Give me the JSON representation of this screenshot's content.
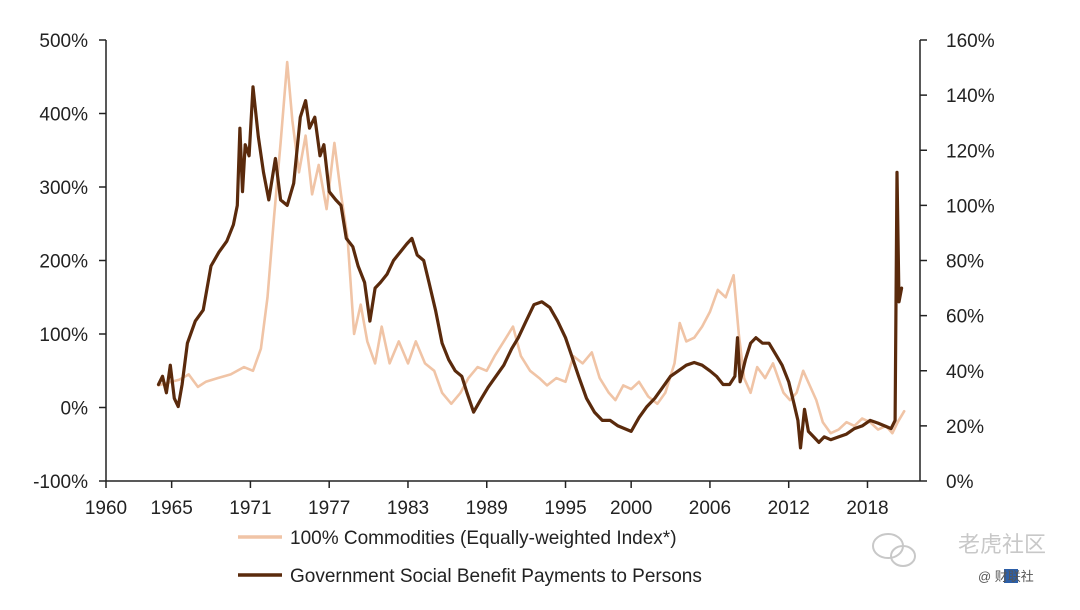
{
  "chart_data": {
    "type": "line",
    "title": "",
    "x": {
      "ticks": [
        "1960",
        "1965",
        "1971",
        "1977",
        "1983",
        "1989",
        "1995",
        "2000",
        "2006",
        "2012",
        "2018"
      ],
      "range": [
        1960,
        2022
      ]
    },
    "y_left": {
      "ticks": [
        "500%",
        "400%",
        "300%",
        "200%",
        "100%",
        "0%",
        "-100%"
      ],
      "range": [
        -100,
        500
      ],
      "unit": "%"
    },
    "y_right": {
      "ticks": [
        "160%",
        "140%",
        "120%",
        "100%",
        "80%",
        "60%",
        "40%",
        "20%",
        "0%"
      ],
      "range": [
        0,
        160
      ],
      "unit": "%"
    },
    "series": [
      {
        "name": "100% Commodities (Equally-weighted Index*)",
        "axis": "left",
        "color": "#f0c4a6",
        "points": [
          [
            1964.0,
            30
          ],
          [
            1965.0,
            35
          ],
          [
            1965.6,
            38
          ],
          [
            1966.3,
            45
          ],
          [
            1967.0,
            28
          ],
          [
            1967.6,
            35
          ],
          [
            1968.5,
            40
          ],
          [
            1969.5,
            45
          ],
          [
            1970.5,
            55
          ],
          [
            1971.2,
            50
          ],
          [
            1971.8,
            80
          ],
          [
            1972.3,
            150
          ],
          [
            1972.8,
            260
          ],
          [
            1973.3,
            360
          ],
          [
            1973.8,
            470
          ],
          [
            1974.2,
            390
          ],
          [
            1974.7,
            320
          ],
          [
            1975.2,
            370
          ],
          [
            1975.7,
            290
          ],
          [
            1976.2,
            330
          ],
          [
            1976.8,
            270
          ],
          [
            1977.4,
            360
          ],
          [
            1977.9,
            290
          ],
          [
            1978.4,
            230
          ],
          [
            1978.9,
            100
          ],
          [
            1979.4,
            140
          ],
          [
            1979.9,
            90
          ],
          [
            1980.5,
            60
          ],
          [
            1981.0,
            110
          ],
          [
            1981.6,
            60
          ],
          [
            1982.3,
            90
          ],
          [
            1983.0,
            60
          ],
          [
            1983.6,
            90
          ],
          [
            1984.3,
            60
          ],
          [
            1985.0,
            50
          ],
          [
            1985.6,
            20
          ],
          [
            1986.3,
            5
          ],
          [
            1987.0,
            20
          ],
          [
            1987.6,
            40
          ],
          [
            1988.3,
            55
          ],
          [
            1989.0,
            50
          ],
          [
            1989.6,
            70
          ],
          [
            1990.3,
            90
          ],
          [
            1991.0,
            110
          ],
          [
            1991.6,
            70
          ],
          [
            1992.3,
            50
          ],
          [
            1993.0,
            40
          ],
          [
            1993.6,
            30
          ],
          [
            1994.3,
            40
          ],
          [
            1995.0,
            35
          ],
          [
            1995.6,
            70
          ],
          [
            1996.3,
            60
          ],
          [
            1997.0,
            75
          ],
          [
            1997.6,
            40
          ],
          [
            1998.3,
            20
          ],
          [
            1998.8,
            10
          ],
          [
            1999.4,
            30
          ],
          [
            2000.0,
            25
          ],
          [
            2000.6,
            35
          ],
          [
            2001.3,
            15
          ],
          [
            2002.0,
            5
          ],
          [
            2002.6,
            20
          ],
          [
            2003.3,
            60
          ],
          [
            2003.7,
            115
          ],
          [
            2004.2,
            90
          ],
          [
            2004.8,
            95
          ],
          [
            2005.4,
            110
          ],
          [
            2006.0,
            130
          ],
          [
            2006.6,
            160
          ],
          [
            2007.2,
            150
          ],
          [
            2007.8,
            180
          ],
          [
            2008.2,
            100
          ],
          [
            2008.6,
            40
          ],
          [
            2009.1,
            20
          ],
          [
            2009.6,
            55
          ],
          [
            2010.2,
            40
          ],
          [
            2010.8,
            60
          ],
          [
            2011.2,
            40
          ],
          [
            2011.6,
            20
          ],
          [
            2012.1,
            10
          ],
          [
            2012.6,
            20
          ],
          [
            2013.1,
            50
          ],
          [
            2013.6,
            30
          ],
          [
            2014.1,
            10
          ],
          [
            2014.6,
            -20
          ],
          [
            2015.2,
            -35
          ],
          [
            2015.8,
            -30
          ],
          [
            2016.4,
            -20
          ],
          [
            2017.0,
            -25
          ],
          [
            2017.6,
            -15
          ],
          [
            2018.2,
            -20
          ],
          [
            2018.8,
            -30
          ],
          [
            2019.4,
            -25
          ],
          [
            2019.9,
            -35
          ],
          [
            2020.3,
            -20
          ],
          [
            2020.8,
            -5
          ]
        ]
      },
      {
        "name": "Government Social Benefit Payments to Persons",
        "axis": "right",
        "color": "#5a2a0c",
        "points": [
          [
            1964.0,
            35
          ],
          [
            1964.3,
            38
          ],
          [
            1964.6,
            32
          ],
          [
            1964.9,
            42
          ],
          [
            1965.2,
            30
          ],
          [
            1965.5,
            27
          ],
          [
            1965.8,
            35
          ],
          [
            1966.2,
            50
          ],
          [
            1966.8,
            58
          ],
          [
            1967.4,
            62
          ],
          [
            1968.0,
            78
          ],
          [
            1968.6,
            83
          ],
          [
            1969.2,
            87
          ],
          [
            1969.7,
            93
          ],
          [
            1970.0,
            100
          ],
          [
            1970.2,
            128
          ],
          [
            1970.4,
            105
          ],
          [
            1970.6,
            122
          ],
          [
            1970.9,
            118
          ],
          [
            1971.2,
            143
          ],
          [
            1971.6,
            125
          ],
          [
            1972.0,
            112
          ],
          [
            1972.4,
            102
          ],
          [
            1972.9,
            117
          ],
          [
            1973.3,
            102
          ],
          [
            1973.8,
            100
          ],
          [
            1974.3,
            108
          ],
          [
            1974.8,
            132
          ],
          [
            1975.2,
            138
          ],
          [
            1975.5,
            128
          ],
          [
            1975.9,
            132
          ],
          [
            1976.3,
            118
          ],
          [
            1976.6,
            122
          ],
          [
            1977.0,
            105
          ],
          [
            1977.5,
            102
          ],
          [
            1977.9,
            100
          ],
          [
            1978.3,
            88
          ],
          [
            1978.8,
            85
          ],
          [
            1979.2,
            78
          ],
          [
            1979.7,
            72
          ],
          [
            1980.1,
            58
          ],
          [
            1980.5,
            70
          ],
          [
            1980.9,
            72
          ],
          [
            1981.4,
            75
          ],
          [
            1981.9,
            80
          ],
          [
            1982.4,
            83
          ],
          [
            1982.9,
            86
          ],
          [
            1983.3,
            88
          ],
          [
            1983.7,
            82
          ],
          [
            1984.2,
            80
          ],
          [
            1984.6,
            72
          ],
          [
            1985.1,
            62
          ],
          [
            1985.6,
            50
          ],
          [
            1986.1,
            44
          ],
          [
            1986.6,
            40
          ],
          [
            1987.1,
            38
          ],
          [
            1987.5,
            32
          ],
          [
            1988.0,
            25
          ],
          [
            1988.6,
            30
          ],
          [
            1989.1,
            34
          ],
          [
            1989.7,
            38
          ],
          [
            1990.3,
            42
          ],
          [
            1990.9,
            48
          ],
          [
            1991.4,
            52
          ],
          [
            1992.0,
            58
          ],
          [
            1992.6,
            64
          ],
          [
            1993.2,
            65
          ],
          [
            1993.8,
            63
          ],
          [
            1994.4,
            58
          ],
          [
            1995.0,
            52
          ],
          [
            1995.5,
            45
          ],
          [
            1996.0,
            38
          ],
          [
            1996.6,
            30
          ],
          [
            1997.2,
            25
          ],
          [
            1997.8,
            22
          ],
          [
            1998.4,
            22
          ],
          [
            1999.0,
            20
          ],
          [
            1999.5,
            19
          ],
          [
            2000.0,
            18
          ],
          [
            2000.6,
            23
          ],
          [
            2001.2,
            27
          ],
          [
            2001.8,
            30
          ],
          [
            2002.4,
            34
          ],
          [
            2003.0,
            38
          ],
          [
            2003.6,
            40
          ],
          [
            2004.2,
            42
          ],
          [
            2004.8,
            43
          ],
          [
            2005.4,
            42
          ],
          [
            2006.0,
            40
          ],
          [
            2006.5,
            38
          ],
          [
            2007.0,
            35
          ],
          [
            2007.5,
            35
          ],
          [
            2007.9,
            38
          ],
          [
            2008.1,
            52
          ],
          [
            2008.3,
            36
          ],
          [
            2008.7,
            44
          ],
          [
            2009.1,
            50
          ],
          [
            2009.5,
            52
          ],
          [
            2010.0,
            50
          ],
          [
            2010.5,
            50
          ],
          [
            2011.0,
            46
          ],
          [
            2011.5,
            42
          ],
          [
            2012.0,
            36
          ],
          [
            2012.4,
            28
          ],
          [
            2012.7,
            22
          ],
          [
            2012.9,
            12
          ],
          [
            2013.2,
            26
          ],
          [
            2013.5,
            18
          ],
          [
            2013.9,
            16
          ],
          [
            2014.3,
            14
          ],
          [
            2014.7,
            16
          ],
          [
            2015.2,
            15
          ],
          [
            2015.8,
            16
          ],
          [
            2016.4,
            17
          ],
          [
            2017.0,
            19
          ],
          [
            2017.6,
            20
          ],
          [
            2018.2,
            22
          ],
          [
            2018.8,
            21
          ],
          [
            2019.3,
            20
          ],
          [
            2019.8,
            19
          ],
          [
            2020.1,
            22
          ],
          [
            2020.25,
            112
          ],
          [
            2020.4,
            65
          ],
          [
            2020.6,
            70
          ]
        ]
      }
    ],
    "legend": "bottom-left"
  },
  "watermark": {
    "text_main": "老虎社区",
    "text_sub": "@ 财联社"
  }
}
